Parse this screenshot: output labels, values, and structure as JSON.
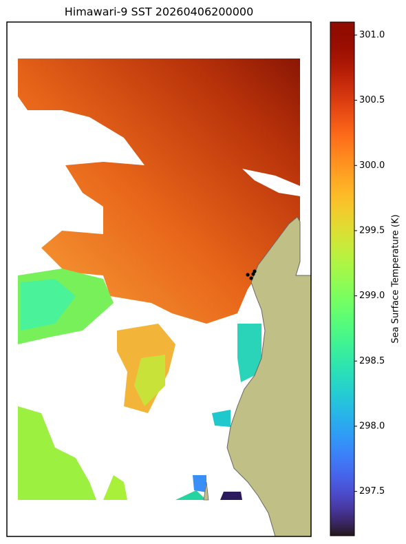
{
  "map": {
    "title": "Himawari-9 SST 20260406200000",
    "colorbar": {
      "label": "Sea Surface Temperature (K)",
      "cmap": "turbo",
      "lim": [
        297.16,
        301.1
      ],
      "ticks": [
        297.5,
        {
          "value": 298,
          "label": "298.0"
        },
        298.5,
        {
          "value": 299,
          "label": "299.0"
        },
        299.5,
        {
          "value": 300,
          "label": "300.0"
        },
        300.5,
        {
          "value": 301,
          "label": "301.0"
        }
      ]
    }
  }
}
